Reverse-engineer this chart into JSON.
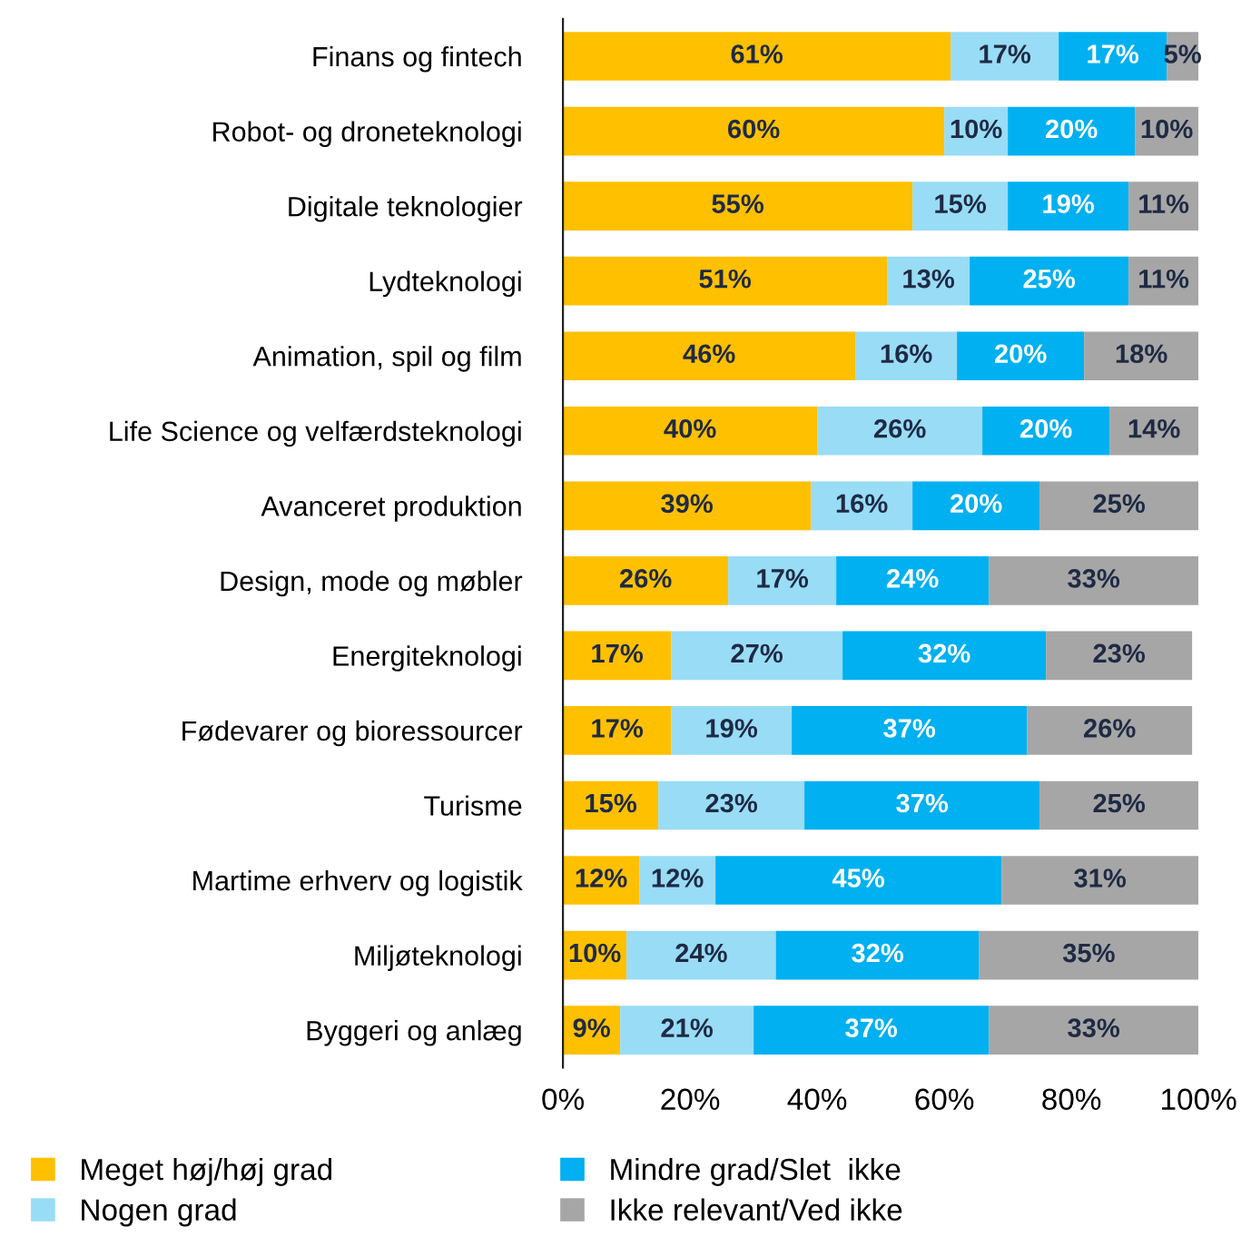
{
  "chart_data": {
    "type": "bar",
    "orientation": "horizontal",
    "stacked": true,
    "categories": [
      "Finans og fintech",
      "Robot- og droneteknologi",
      "Digitale teknologier",
      "Lydteknologi",
      "Animation, spil og film",
      "Life Science og velfærdsteknologi",
      "Avanceret produktion",
      "Design, mode og møbler",
      "Energiteknologi",
      "Fødevarer og bioressourcer",
      "Turisme",
      "Martime erhverv og logistik",
      "Miljøteknologi",
      "Byggeri og anlæg"
    ],
    "series": [
      {
        "name": "Meget høj/høj grad",
        "color": "#ffc000",
        "values": [
          61,
          60,
          55,
          51,
          46,
          40,
          39,
          26,
          17,
          17,
          15,
          12,
          10,
          9
        ],
        "value_labels": [
          "61%",
          "60%",
          "55%",
          "51%",
          "46%",
          "40%",
          "39%",
          "26%",
          "17%",
          "17%",
          "15%",
          "12%",
          "10%",
          "9%"
        ]
      },
      {
        "name": "Nogen grad",
        "color": "#99dcf6",
        "values": [
          17,
          10,
          15,
          13,
          16,
          26,
          16,
          17,
          27,
          19,
          23,
          12,
          23.5,
          21
        ],
        "value_labels": [
          "17%",
          "10%",
          "15%",
          "13%",
          "16%",
          "26%",
          "16%",
          "17%",
          "27%",
          "19%",
          "23%",
          "12%",
          "24%",
          "21%"
        ]
      },
      {
        "name": "Mindre grad/Slet  ikke",
        "color": "#00b0f0",
        "values": [
          17,
          20,
          19,
          25,
          20,
          20,
          20,
          24,
          32,
          37,
          37,
          45,
          32,
          37
        ],
        "value_labels": [
          "17%",
          "20%",
          "19%",
          "25%",
          "20%",
          "20%",
          "20%",
          "24%",
          "32%",
          "37%",
          "37%",
          "45%",
          "32%",
          "37%"
        ]
      },
      {
        "name": "Ikke relevant/Ved ikke",
        "color": "#a6a6a6",
        "values": [
          5,
          10,
          11,
          11,
          18,
          14,
          25,
          33,
          23,
          26,
          25,
          31,
          34.5,
          33
        ],
        "value_labels": [
          "5%",
          "10%",
          "11%",
          "11%",
          "18%",
          "14%",
          "25%",
          "33%",
          "23%",
          "26%",
          "25%",
          "31%",
          "35%",
          "33%"
        ]
      }
    ],
    "xlim": [
      0,
      100
    ],
    "xticks": [
      {
        "value": 0,
        "label": "0%"
      },
      {
        "value": 20,
        "label": "20%"
      },
      {
        "value": 40,
        "label": "40%"
      },
      {
        "value": 60,
        "label": "60%"
      },
      {
        "value": 80,
        "label": "80%"
      },
      {
        "value": 100,
        "label": "100%"
      }
    ],
    "grid": false,
    "legend": "bottom"
  }
}
